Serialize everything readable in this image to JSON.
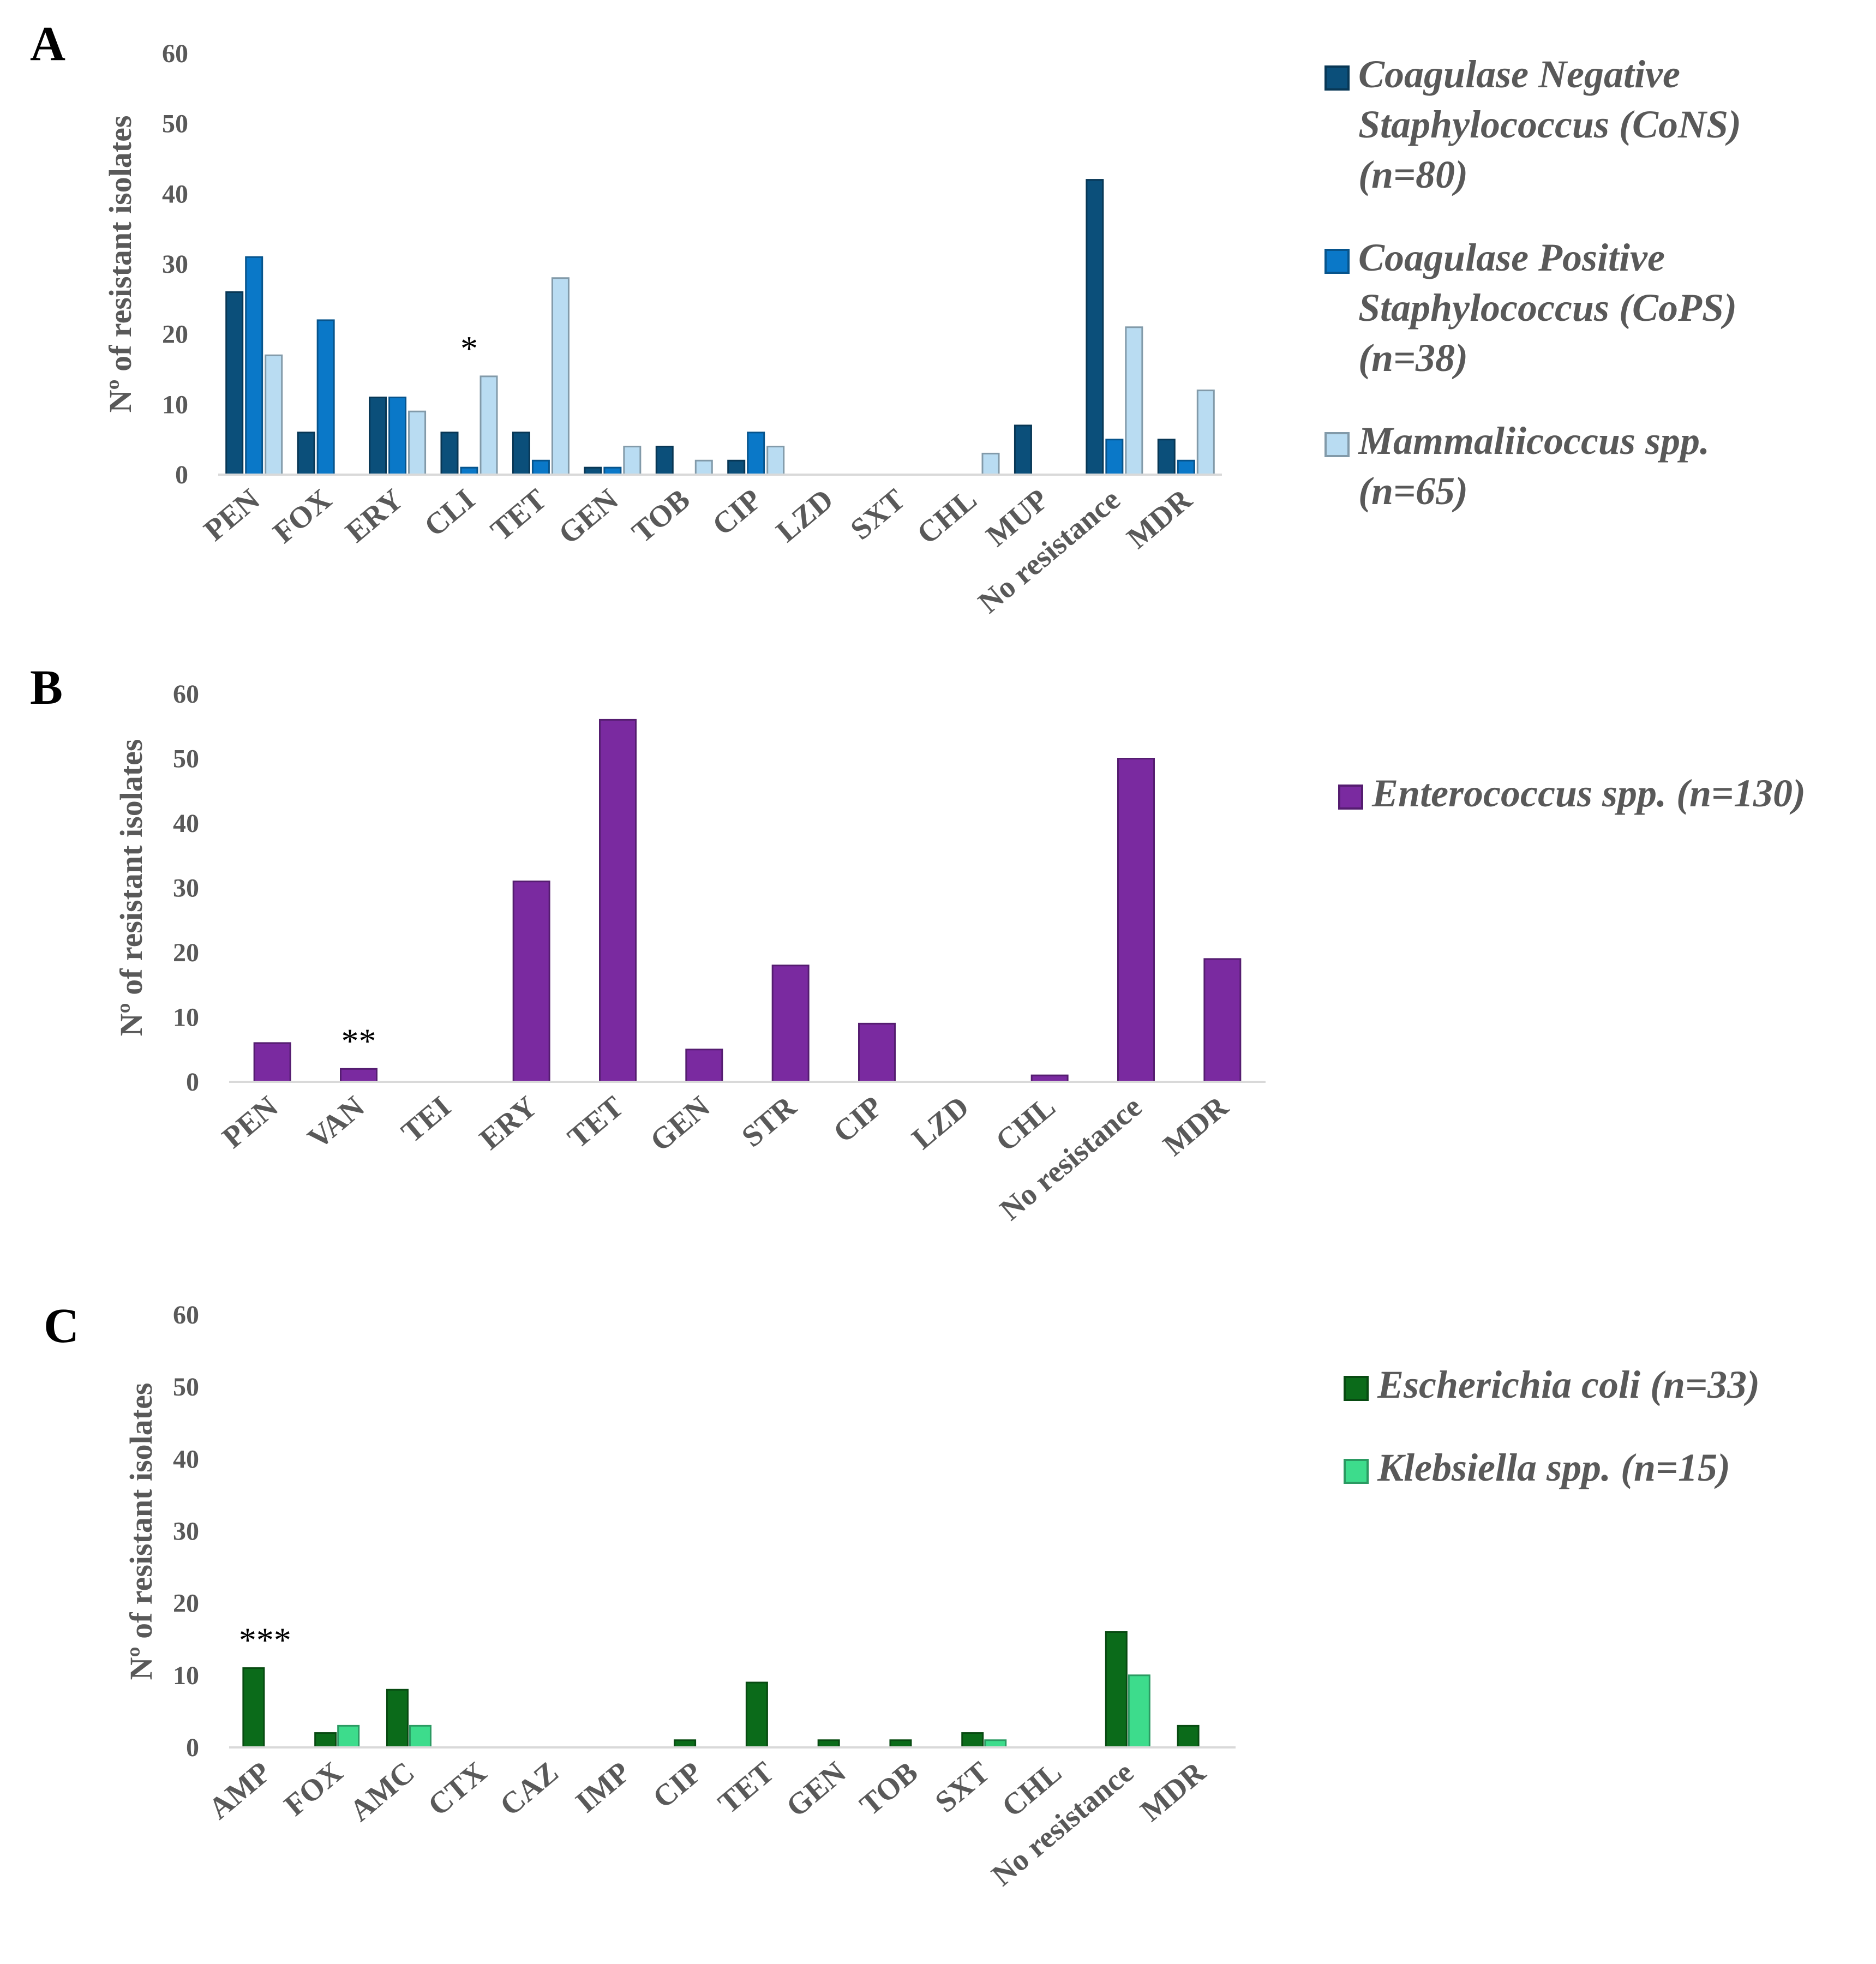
{
  "chart_data": [
    {
      "type": "bar",
      "panel": "A",
      "ylabel": "Nº of resistant isolates",
      "ylim": [
        0,
        60
      ],
      "yticks": [
        "0",
        "10",
        "20",
        "30",
        "40",
        "50",
        "60"
      ],
      "categories": [
        "PEN",
        "FOX",
        "ERY",
        "CLI",
        "TET",
        "GEN",
        "TOB",
        "CIP",
        "LZD",
        "SXT",
        "CHL",
        "MUP",
        "No resistance",
        "MDR"
      ],
      "series": [
        {
          "name": "Coagulase Negative Staphylococcus (CoNS) (n=80)",
          "legend_lines": [
            "Coagulase Negative",
            "Staphylococcus (CoNS)",
            "(n=80)"
          ],
          "color": "#0b4f7a",
          "values": [
            26,
            6,
            11,
            6,
            6,
            1,
            4,
            2,
            0,
            0,
            0,
            7,
            42,
            5
          ]
        },
        {
          "name": "Coagulase Positive Staphylococcus (CoPS) (n=38)",
          "legend_lines": [
            "Coagulase Positive",
            "Staphylococcus (CoPS)",
            "(n=38)"
          ],
          "color": "#0a78c8",
          "values": [
            31,
            22,
            11,
            1,
            2,
            1,
            0,
            6,
            0,
            0,
            0,
            0,
            5,
            2
          ]
        },
        {
          "name": "Mammaliicoccus spp. (n=65)",
          "legend_lines": [
            "Mammaliicoccus spp.",
            "(n=65)"
          ],
          "color": "#b9dcf2",
          "values": [
            17,
            0,
            9,
            14,
            28,
            4,
            2,
            4,
            0,
            0,
            3,
            0,
            21,
            12
          ]
        }
      ],
      "annotations": [
        {
          "category": "CLI",
          "text": "*"
        }
      ]
    },
    {
      "type": "bar",
      "panel": "B",
      "ylabel": "Nº of resistant isolates",
      "ylim": [
        0,
        60
      ],
      "yticks": [
        "0",
        "10",
        "20",
        "30",
        "40",
        "50",
        "60"
      ],
      "categories": [
        "PEN",
        "VAN",
        "TEI",
        "ERY",
        "TET",
        "GEN",
        "STR",
        "CIP",
        "LZD",
        "CHL",
        "No resistance",
        "MDR"
      ],
      "series": [
        {
          "name": "Enterococcus spp. (n=130)",
          "legend_lines": [
            "Enterococcus spp. (n=130)"
          ],
          "color": "#7a2aa0",
          "values": [
            6,
            2,
            0,
            31,
            56,
            5,
            18,
            9,
            0,
            1,
            50,
            19
          ]
        }
      ],
      "annotations": [
        {
          "category": "VAN",
          "text": "**"
        }
      ]
    },
    {
      "type": "bar",
      "panel": "C",
      "ylabel": "Nº of resistant isolates",
      "ylim": [
        0,
        60
      ],
      "yticks": [
        "0",
        "10",
        "20",
        "30",
        "40",
        "50",
        "60"
      ],
      "categories": [
        "AMP",
        "FOX",
        "AMC",
        "CTX",
        "CAZ",
        "IMP",
        "CIP",
        "TET",
        "GEN",
        "TOB",
        "SXT",
        "CHL",
        "No resistance",
        "MDR"
      ],
      "series": [
        {
          "name": "Escherichia coli (n=33)",
          "legend_lines": [
            "Escherichia coli (n=33)"
          ],
          "color": "#0b6b1a",
          "values": [
            11,
            2,
            8,
            0,
            0,
            0,
            1,
            9,
            1,
            1,
            2,
            0,
            16,
            3
          ]
        },
        {
          "name": "Klebsiella spp. (n=15)",
          "legend_lines": [
            "Klebsiella spp. (n=15)"
          ],
          "color": "#3ddc8c",
          "values": [
            0,
            3,
            3,
            0,
            0,
            0,
            0,
            0,
            0,
            0,
            1,
            0,
            10,
            0
          ]
        }
      ],
      "annotations": [
        {
          "category": "AMP",
          "text": "***"
        }
      ]
    }
  ]
}
